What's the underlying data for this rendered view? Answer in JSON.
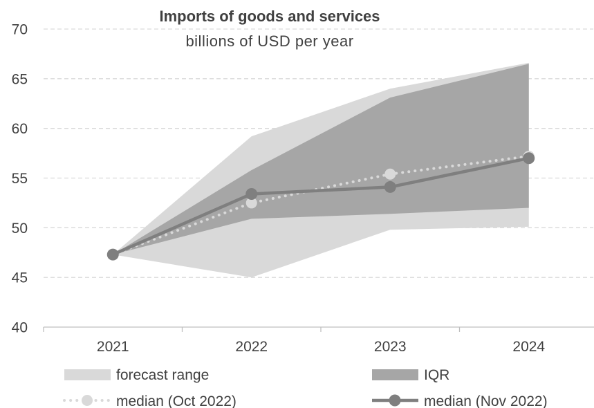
{
  "chart_data": {
    "type": "area",
    "title": "Imports of goods and services",
    "subtitle": "billions of USD per year",
    "xlabel": "",
    "ylabel": "",
    "categories": [
      "2021",
      "2022",
      "2023",
      "2024"
    ],
    "ylim": [
      40,
      70
    ],
    "yticks": [
      40,
      45,
      50,
      55,
      60,
      65,
      70
    ],
    "grid": true,
    "legend_position": "bottom",
    "colors": {
      "forecast_range": "#d9d9d9",
      "iqr": "#a6a6a6",
      "median_oct": "#d9d9d9",
      "median_nov": "#7f7f7f",
      "grid": "#d9d9d9",
      "text": "#404040"
    },
    "series": [
      {
        "name": "forecast range",
        "kind": "band",
        "low": [
          47.3,
          45.0,
          49.8,
          50.1
        ],
        "high": [
          47.3,
          59.2,
          64.0,
          66.6
        ]
      },
      {
        "name": "IQR",
        "kind": "band",
        "low": [
          47.3,
          50.9,
          51.4,
          52.0
        ],
        "high": [
          47.3,
          55.8,
          63.1,
          66.5
        ]
      },
      {
        "name": "median (Oct 2022)",
        "kind": "line",
        "style": "dotted",
        "values": [
          47.3,
          52.5,
          55.4,
          57.2
        ]
      },
      {
        "name": "median (Nov 2022)",
        "kind": "line",
        "style": "solid",
        "values": [
          47.3,
          53.4,
          54.1,
          57.0
        ]
      }
    ]
  }
}
